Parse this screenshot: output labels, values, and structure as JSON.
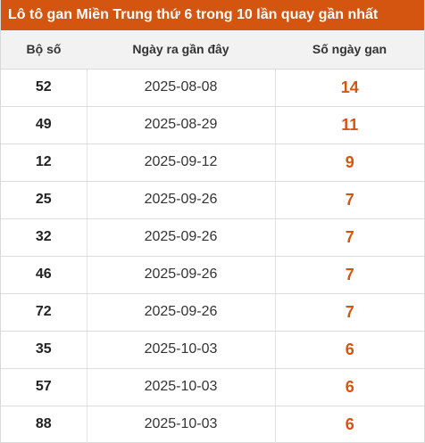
{
  "title": "Lô tô gan Miền Trung thứ 6 trong 10 lần quay gần nhất",
  "columns": [
    "Bộ số",
    "Ngày ra gần đây",
    "Số ngày gan"
  ],
  "accent_color": "#d4550f",
  "rows": [
    {
      "number": "52",
      "date": "2025-08-08",
      "days": "14"
    },
    {
      "number": "49",
      "date": "2025-08-29",
      "days": "11"
    },
    {
      "number": "12",
      "date": "2025-09-12",
      "days": "9"
    },
    {
      "number": "25",
      "date": "2025-09-26",
      "days": "7"
    },
    {
      "number": "32",
      "date": "2025-09-26",
      "days": "7"
    },
    {
      "number": "46",
      "date": "2025-09-26",
      "days": "7"
    },
    {
      "number": "72",
      "date": "2025-09-26",
      "days": "7"
    },
    {
      "number": "35",
      "date": "2025-10-03",
      "days": "6"
    },
    {
      "number": "57",
      "date": "2025-10-03",
      "days": "6"
    },
    {
      "number": "88",
      "date": "2025-10-03",
      "days": "6"
    }
  ]
}
